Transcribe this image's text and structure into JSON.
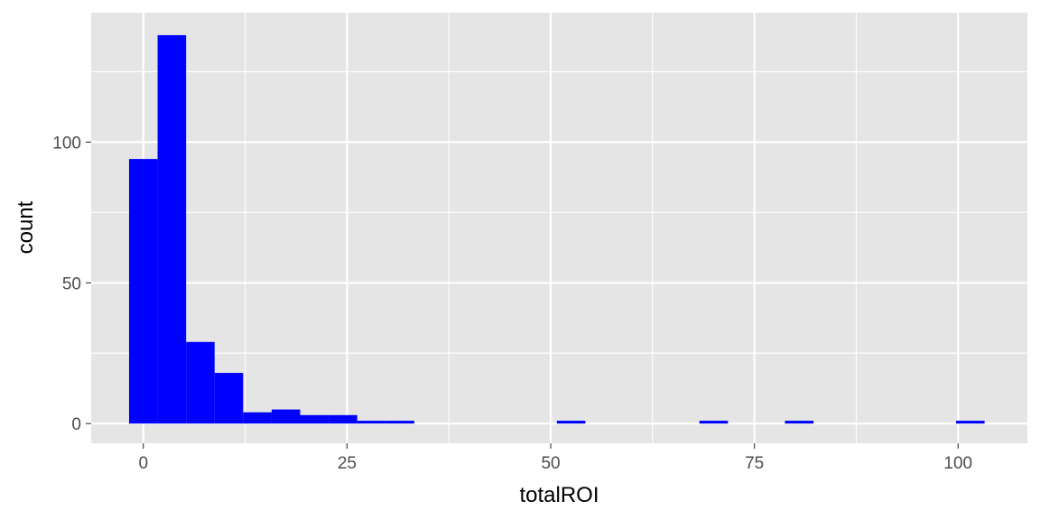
{
  "chart_data": {
    "type": "bar",
    "subtype": "histogram",
    "title": "",
    "xlabel": "totalROI",
    "ylabel": "count",
    "xlim": [
      -6.4,
      108.5
    ],
    "ylim": [
      -7,
      146
    ],
    "x_ticks": [
      0,
      25,
      50,
      75,
      100
    ],
    "x_tick_labels": [
      "0",
      "25",
      "50",
      "75",
      "100"
    ],
    "y_ticks": [
      0,
      50,
      100
    ],
    "y_tick_labels": [
      "0",
      "50",
      "100"
    ],
    "grid": true,
    "legend": "none",
    "bin_width": 3.5,
    "bins": [
      {
        "start": -1.75,
        "end": 1.75,
        "count": 94
      },
      {
        "start": 1.75,
        "end": 5.25,
        "count": 138
      },
      {
        "start": 5.25,
        "end": 8.75,
        "count": 29
      },
      {
        "start": 8.75,
        "end": 12.25,
        "count": 18
      },
      {
        "start": 12.25,
        "end": 15.75,
        "count": 4
      },
      {
        "start": 15.75,
        "end": 19.25,
        "count": 5
      },
      {
        "start": 19.25,
        "end": 22.75,
        "count": 3
      },
      {
        "start": 22.75,
        "end": 26.25,
        "count": 3
      },
      {
        "start": 26.25,
        "end": 29.75,
        "count": 1
      },
      {
        "start": 29.75,
        "end": 33.25,
        "count": 1
      },
      {
        "start": 50.75,
        "end": 54.25,
        "count": 1
      },
      {
        "start": 68.25,
        "end": 71.75,
        "count": 1
      },
      {
        "start": 78.75,
        "end": 82.25,
        "count": 1
      },
      {
        "start": 99.75,
        "end": 103.25,
        "count": 1
      }
    ],
    "colors": {
      "bar_fill": "#0000ff",
      "panel_background": "#e5e5e5",
      "grid_line": "#ffffff",
      "tick_label": "#4d4d4d",
      "tick_mark": "#333333",
      "axis_title": "#000000"
    }
  }
}
